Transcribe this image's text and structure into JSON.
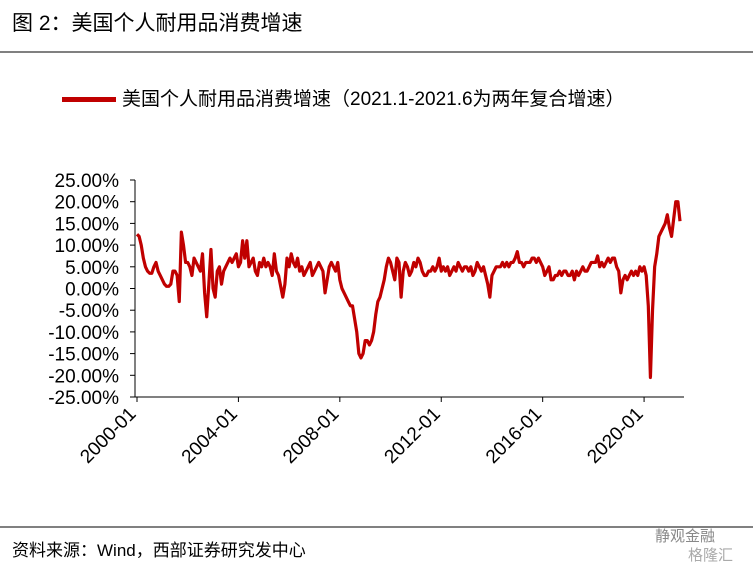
{
  "chart_data": {
    "type": "line",
    "title": "图 2：美国个人耐用品消费增速",
    "source": "资料来源：Wind，西部证券研究发中心",
    "watermark": [
      "静观金融",
      "格隆汇"
    ],
    "x": [
      "2000-01",
      "2000-02",
      "2000-03",
      "2000-04",
      "2000-05",
      "2000-06",
      "2000-07",
      "2000-08",
      "2000-09",
      "2000-10",
      "2000-11",
      "2000-12",
      "2001-01",
      "2001-02",
      "2001-03",
      "2001-04",
      "2001-05",
      "2001-06",
      "2001-07",
      "2001-08",
      "2001-09",
      "2001-10",
      "2001-11",
      "2001-12",
      "2002-01",
      "2002-02",
      "2002-03",
      "2002-04",
      "2002-05",
      "2002-06",
      "2002-07",
      "2002-08",
      "2002-09",
      "2002-10",
      "2002-11",
      "2002-12",
      "2003-01",
      "2003-02",
      "2003-03",
      "2003-04",
      "2003-05",
      "2003-06",
      "2003-07",
      "2003-08",
      "2003-09",
      "2003-10",
      "2003-11",
      "2003-12",
      "2004-01",
      "2004-02",
      "2004-03",
      "2004-04",
      "2004-05",
      "2004-06",
      "2004-07",
      "2004-08",
      "2004-09",
      "2004-10",
      "2004-11",
      "2004-12",
      "2005-01",
      "2005-02",
      "2005-03",
      "2005-04",
      "2005-05",
      "2005-06",
      "2005-07",
      "2005-08",
      "2005-09",
      "2005-10",
      "2005-11",
      "2005-12",
      "2006-01",
      "2006-02",
      "2006-03",
      "2006-04",
      "2006-05",
      "2006-06",
      "2006-07",
      "2006-08",
      "2006-09",
      "2006-10",
      "2006-11",
      "2006-12",
      "2007-01",
      "2007-02",
      "2007-03",
      "2007-04",
      "2007-05",
      "2007-06",
      "2007-07",
      "2007-08",
      "2007-09",
      "2007-10",
      "2007-11",
      "2007-12",
      "2008-01",
      "2008-02",
      "2008-03",
      "2008-04",
      "2008-05",
      "2008-06",
      "2008-07",
      "2008-08",
      "2008-09",
      "2008-10",
      "2008-11",
      "2008-12",
      "2009-01",
      "2009-02",
      "2009-03",
      "2009-04",
      "2009-05",
      "2009-06",
      "2009-07",
      "2009-08",
      "2009-09",
      "2009-10",
      "2009-11",
      "2009-12",
      "2010-01",
      "2010-02",
      "2010-03",
      "2010-04",
      "2010-05",
      "2010-06",
      "2010-07",
      "2010-08",
      "2010-09",
      "2010-10",
      "2010-11",
      "2010-12",
      "2011-01",
      "2011-02",
      "2011-03",
      "2011-04",
      "2011-05",
      "2011-06",
      "2011-07",
      "2011-08",
      "2011-09",
      "2011-10",
      "2011-11",
      "2011-12",
      "2012-01",
      "2012-02",
      "2012-03",
      "2012-04",
      "2012-05",
      "2012-06",
      "2012-07",
      "2012-08",
      "2012-09",
      "2012-10",
      "2012-11",
      "2012-12",
      "2013-01",
      "2013-02",
      "2013-03",
      "2013-04",
      "2013-05",
      "2013-06",
      "2013-07",
      "2013-08",
      "2013-09",
      "2013-10",
      "2013-11",
      "2013-12",
      "2014-01",
      "2014-02",
      "2014-03",
      "2014-04",
      "2014-05",
      "2014-06",
      "2014-07",
      "2014-08",
      "2014-09",
      "2014-10",
      "2014-11",
      "2014-12",
      "2015-01",
      "2015-02",
      "2015-03",
      "2015-04",
      "2015-05",
      "2015-06",
      "2015-07",
      "2015-08",
      "2015-09",
      "2015-10",
      "2015-11",
      "2015-12",
      "2016-01",
      "2016-02",
      "2016-03",
      "2016-04",
      "2016-05",
      "2016-06",
      "2016-07",
      "2016-08",
      "2016-09",
      "2016-10",
      "2016-11",
      "2016-12",
      "2017-01",
      "2017-02",
      "2017-03",
      "2017-04",
      "2017-05",
      "2017-06",
      "2017-07",
      "2017-08",
      "2017-09",
      "2017-10",
      "2017-11",
      "2017-12",
      "2018-01",
      "2018-02",
      "2018-03",
      "2018-04",
      "2018-05",
      "2018-06",
      "2018-07",
      "2018-08",
      "2018-09",
      "2018-10",
      "2018-11",
      "2018-12",
      "2019-01",
      "2019-02",
      "2019-03",
      "2019-04",
      "2019-05",
      "2019-06",
      "2019-07",
      "2019-08",
      "2019-09",
      "2019-10",
      "2019-11",
      "2019-12",
      "2020-01",
      "2020-02",
      "2020-03",
      "2020-04",
      "2020-05",
      "2020-06",
      "2020-07",
      "2020-08",
      "2020-09",
      "2020-10",
      "2020-11",
      "2020-12",
      "2021-01",
      "2021-02",
      "2021-03",
      "2021-04",
      "2021-05",
      "2021-06"
    ],
    "series": [
      {
        "name": "美国个人耐用品消费增速（2021.1-2021.6为两年复合增速）",
        "color": "#c00000",
        "values": [
          12.5,
          12,
          10,
          7,
          5,
          4,
          3.5,
          3.5,
          5,
          6,
          4,
          3,
          2,
          1,
          0.5,
          0.5,
          1,
          4,
          4,
          3,
          -3,
          13,
          10,
          6,
          6,
          5,
          3,
          7,
          6,
          5,
          4,
          8,
          -1,
          -6.5,
          1,
          9,
          0,
          -2,
          4,
          5,
          1,
          4,
          5,
          6,
          7,
          6,
          7,
          8,
          5,
          6,
          11,
          7,
          11,
          5,
          6,
          7,
          4,
          3,
          6,
          5,
          7,
          5,
          6,
          5,
          3,
          8,
          4,
          3,
          0.5,
          -2,
          1,
          7,
          5,
          8,
          6,
          5,
          7,
          4,
          5,
          3,
          4,
          5,
          6,
          3,
          4,
          5,
          6,
          5,
          4,
          -1,
          2,
          5,
          6,
          5,
          4,
          6,
          2,
          0,
          -1,
          -2,
          -3,
          -4,
          -4,
          -7,
          -10,
          -15,
          -16,
          -15,
          -12,
          -12,
          -13,
          -12,
          -10,
          -6,
          -3,
          -2,
          0,
          2,
          5,
          7,
          6,
          4,
          2,
          7,
          6,
          -2,
          4,
          6,
          5,
          3,
          4,
          6,
          5,
          7,
          6,
          4,
          3,
          3,
          4,
          4,
          5,
          4,
          5,
          7,
          4,
          5,
          4,
          5,
          3,
          4,
          5,
          4,
          6,
          5,
          4,
          5,
          5,
          4,
          5,
          3,
          4,
          6,
          5,
          4,
          5,
          3,
          1,
          -2,
          3,
          4,
          5,
          5,
          5,
          6,
          5,
          6,
          5,
          6,
          6,
          7,
          8.5,
          6,
          6,
          5,
          6,
          6,
          6,
          7,
          7,
          6,
          7,
          6,
          5,
          3,
          4,
          5,
          2,
          2,
          3,
          3,
          4,
          3,
          4,
          4,
          3,
          3,
          4,
          2,
          4,
          3,
          4,
          5,
          4,
          4,
          5,
          6,
          6,
          6,
          7.5,
          5,
          6,
          5,
          6,
          7,
          6,
          7,
          7,
          5,
          4,
          -1,
          2,
          3,
          2,
          3,
          4,
          3,
          4,
          3,
          5,
          4,
          5,
          3,
          -4,
          -20.5,
          -5,
          5,
          8,
          12,
          13,
          14,
          15,
          17,
          14,
          12,
          16,
          20,
          20,
          15.5
        ]
      }
    ],
    "xticks": [
      "2000-01",
      "2004-01",
      "2008-01",
      "2012-01",
      "2016-01",
      "2020-01"
    ],
    "ylim": [
      -25,
      25
    ],
    "yticks": [
      {
        "value": -25,
        "label": "-25.00%"
      },
      {
        "value": -20,
        "label": "-20.00%"
      },
      {
        "value": -15,
        "label": "-15.00%"
      },
      {
        "value": -10,
        "label": "-10.00%"
      },
      {
        "value": -5,
        "label": "-5.00%"
      },
      {
        "value": 0,
        "label": "0.00%"
      },
      {
        "value": 5,
        "label": "5.00%"
      },
      {
        "value": 10,
        "label": "10.00%"
      },
      {
        "value": 15,
        "label": "15.00%"
      },
      {
        "value": 20,
        "label": "20.00%"
      },
      {
        "value": 25,
        "label": "25.00%"
      }
    ],
    "grid": false
  }
}
